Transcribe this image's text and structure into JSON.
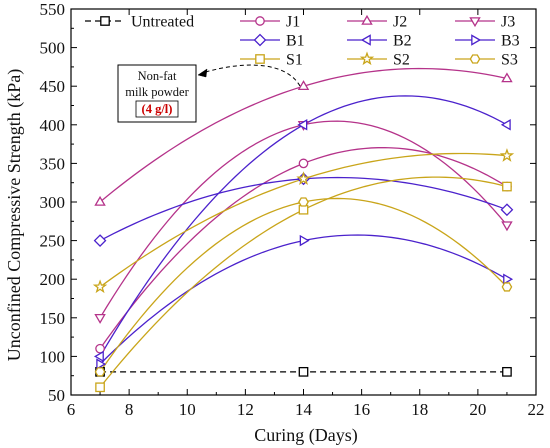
{
  "chart_data": {
    "type": "line",
    "xlabel": "Curing (Days)",
    "ylabel": "Unconfined Compressive Strength (kPa)",
    "xlim": [
      6,
      22
    ],
    "ylim": [
      50,
      550
    ],
    "xticks": [
      6,
      8,
      10,
      12,
      14,
      16,
      18,
      20,
      22
    ],
    "yticks": [
      50,
      100,
      150,
      200,
      250,
      300,
      350,
      400,
      450,
      500,
      550
    ],
    "x": [
      7,
      14,
      21
    ],
    "series": [
      {
        "name": "Untreated",
        "values": [
          80,
          80,
          80
        ],
        "color": "#000000",
        "marker": "square",
        "dashed": true
      },
      {
        "name": "J1",
        "values": [
          110,
          350,
          320
        ],
        "color": "#b5338a",
        "marker": "circle"
      },
      {
        "name": "J2",
        "values": [
          300,
          450,
          460
        ],
        "color": "#b5338a",
        "marker": "triangle-up"
      },
      {
        "name": "J3",
        "values": [
          150,
          400,
          270
        ],
        "color": "#b5338a",
        "marker": "triangle-down"
      },
      {
        "name": "B1",
        "values": [
          250,
          330,
          290
        ],
        "color": "#4b22cc",
        "marker": "diamond"
      },
      {
        "name": "B2",
        "values": [
          100,
          400,
          400
        ],
        "color": "#4b22cc",
        "marker": "triangle-left"
      },
      {
        "name": "B3",
        "values": [
          90,
          250,
          200
        ],
        "color": "#4b22cc",
        "marker": "triangle-right"
      },
      {
        "name": "S1",
        "values": [
          60,
          290,
          320
        ],
        "color": "#c9a51a",
        "marker": "square"
      },
      {
        "name": "S2",
        "values": [
          190,
          330,
          360
        ],
        "color": "#c9a51a",
        "marker": "star"
      },
      {
        "name": "S3",
        "values": [
          80,
          300,
          190
        ],
        "color": "#c9a51a",
        "marker": "hexagon"
      }
    ],
    "annotation": {
      "line1": "Non-fat",
      "line2": "milk powder",
      "line3": "(4 g/l)",
      "highlight_color": "#cc0000"
    },
    "grid": false,
    "legend_position": "top"
  }
}
